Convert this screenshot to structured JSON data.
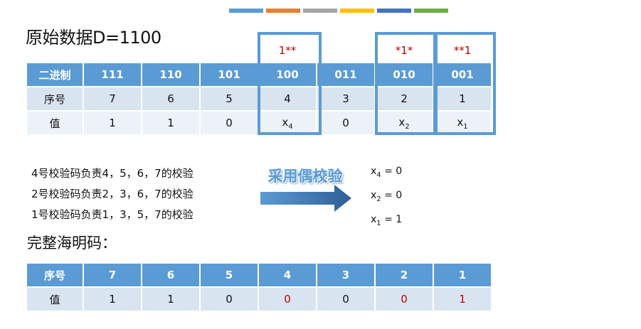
{
  "colors": {
    "accent": "#5b9bd5",
    "red": "#c00000",
    "top_bars": [
      "#5b9bd5",
      "#ed7d31",
      "#a5a5a5",
      "#ffc000",
      "#4472c4",
      "#70ad47"
    ]
  },
  "title": "原始数据D=1100",
  "markers": {
    "col_100": "1**",
    "col_010": "*1*",
    "col_001": "**1"
  },
  "table1": {
    "labels": [
      "二进制",
      "序号",
      "值"
    ],
    "binary": [
      "111",
      "110",
      "101",
      "100",
      "011",
      "010",
      "001"
    ],
    "index": [
      "7",
      "6",
      "5",
      "4",
      "3",
      "2",
      "1"
    ],
    "value_plain": {
      "c0": "1",
      "c1": "1",
      "c2": "0",
      "c4": "0"
    },
    "value_vars": {
      "x4": "x",
      "x4_sub": "4",
      "x2": "x",
      "x2_sub": "2",
      "x1": "x",
      "x1_sub": "1"
    }
  },
  "rules": [
    "4号校验码负责4，5，6，7的校验",
    "2号校验码负责2，3，6，7的校验",
    "1号校验码负责1，3，5，7的校验"
  ],
  "arrow_label": "采用偶校验",
  "results": [
    {
      "var": "x",
      "sub": "4",
      "rest": " = 0"
    },
    {
      "var": "x",
      "sub": "2",
      "rest": " = 0"
    },
    {
      "var": "x",
      "sub": "1",
      "rest": " = 1"
    }
  ],
  "subtitle": "完整海明码：",
  "table2": {
    "labels": [
      "序号",
      "值"
    ],
    "index": [
      "7",
      "6",
      "5",
      "4",
      "3",
      "2",
      "1"
    ],
    "values": [
      "1",
      "1",
      "0",
      "0",
      "0",
      "0",
      "1"
    ]
  }
}
